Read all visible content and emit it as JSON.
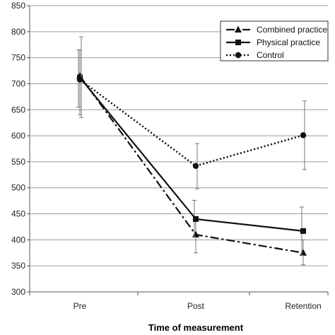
{
  "chart_data": {
    "type": "line",
    "categories": [
      "Pre",
      "Post",
      "Retention"
    ],
    "xlabel": "Time of measurement",
    "ylabel": "",
    "ylim": [
      300,
      850
    ],
    "yticks": [
      300,
      350,
      400,
      450,
      500,
      550,
      600,
      650,
      700,
      750,
      800,
      850
    ],
    "grid": "horizontal",
    "legend_position": "top-right",
    "series": [
      {
        "name": "Combined practice",
        "marker": "triangle",
        "dash": "dash-dot",
        "values": [
          715,
          410,
          375
        ],
        "error_low": [
          640,
          375,
          352
        ],
        "error_high": [
          765,
          445,
          400
        ]
      },
      {
        "name": "Physical practice",
        "marker": "square",
        "dash": "solid",
        "values": [
          712,
          440,
          417
        ],
        "error_low": [
          655,
          405,
          370
        ],
        "error_high": [
          765,
          476,
          463
        ]
      },
      {
        "name": "Control",
        "marker": "circle",
        "dash": "dotted",
        "values": [
          708,
          542,
          601
        ],
        "error_low": [
          635,
          498,
          535
        ],
        "error_high": [
          790,
          585,
          667
        ]
      }
    ]
  }
}
